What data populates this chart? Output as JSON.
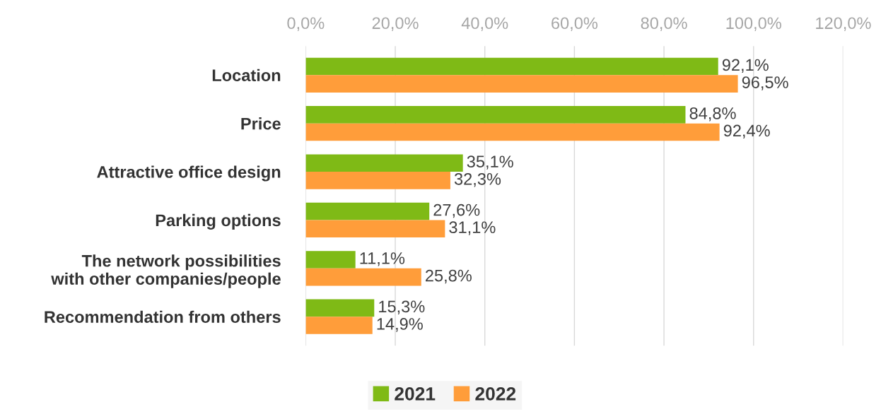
{
  "chart_data": {
    "type": "bar",
    "orientation": "horizontal",
    "categories": [
      "Location",
      "Price",
      "Attractive office design",
      "Parking options",
      "The network possibilities\nwith other companies/people",
      "Recommendation from others"
    ],
    "series": [
      {
        "name": "2021",
        "color": "#7fba16",
        "values": [
          92.1,
          84.8,
          35.1,
          27.6,
          11.1,
          15.3
        ],
        "value_labels": [
          "92,1%",
          "84,8%",
          "35,1%",
          "27,6%",
          "11,1%",
          "15,3%"
        ]
      },
      {
        "name": "2022",
        "color": "#ff9d3a",
        "values": [
          96.5,
          92.4,
          32.3,
          31.1,
          25.8,
          14.9
        ],
        "value_labels": [
          "96,5%",
          "92,4%",
          "32,3%",
          "31,1%",
          "25,8%",
          "14,9%"
        ]
      }
    ],
    "xlim": [
      0,
      120
    ],
    "xticks": [
      {
        "value": 0,
        "label": "0,0%"
      },
      {
        "value": 20,
        "label": "20,0%"
      },
      {
        "value": 40,
        "label": "40,0%"
      },
      {
        "value": 60,
        "label": "60,0%"
      },
      {
        "value": 80,
        "label": "80,0%"
      },
      {
        "value": 100,
        "label": "100,0%"
      },
      {
        "value": 120,
        "label": "120,0%"
      }
    ],
    "grid": "x",
    "legend": "bottom"
  }
}
